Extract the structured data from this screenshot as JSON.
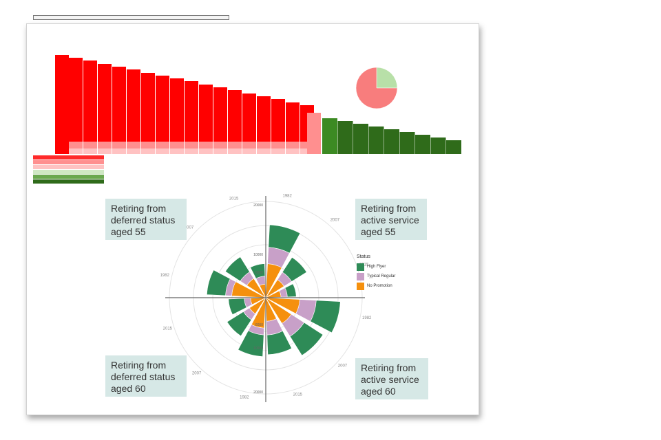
{
  "colors": {
    "red": "#ff0000",
    "red_light": "#ff8f8f",
    "red_pale": "#ffc2c2",
    "green_dark": "#2f6b1a",
    "green_mid": "#3c8a23",
    "pie_red": "#f87d7d",
    "pie_green": "#b8e0a8",
    "high_flyer": "#2e8b57",
    "typical_regular": "#c8a0c8",
    "no_promotion": "#f5900e"
  },
  "top_chart": {
    "type": "bar",
    "bars_red": 17,
    "bars_green": 9,
    "pie_values": [
      25,
      75
    ]
  },
  "chart_data": {
    "type": "pie",
    "subtype": "polar-area (nightingale rose)",
    "legend_title": "Status",
    "legend": [
      "High Flyer",
      "Typical Regular",
      "No Promotion"
    ],
    "legend_position": "right",
    "quadrants": [
      {
        "name": "Retiring from active service aged 55",
        "stacks": [
          [
            6000,
            3000,
            2500
          ],
          [
            3000,
            1000,
            1000
          ],
          [
            1000,
            500,
            500
          ]
        ]
      },
      {
        "name": "Retiring from active service aged 60",
        "stacks": [
          [
            6500,
            3000,
            2500
          ],
          [
            5500,
            2500,
            2000
          ],
          [
            4000,
            1800,
            1200
          ]
        ]
      },
      {
        "name": "Retiring from deferred status aged 60",
        "stacks": [
          [
            4500,
            1000,
            2000
          ],
          [
            3000,
            700,
            800
          ],
          [
            2000,
            500,
            500
          ]
        ]
      },
      {
        "name": "Retiring from deferred status aged 55",
        "stacks": [
          [
            4000,
            1000,
            2500
          ],
          [
            3000,
            900,
            1100
          ],
          [
            1500,
            600,
            400
          ]
        ]
      }
    ],
    "radial_labels_up": [
      "6000",
      "10000",
      "20000"
    ],
    "radial_labels_down": [
      "6000",
      "10000",
      "20000"
    ],
    "year_labels": [
      "1982",
      "2007",
      "2015",
      "1982",
      "2007",
      "2015",
      "1982",
      "2007",
      "2015",
      "1982",
      "2007",
      "2015"
    ]
  },
  "callouts": {
    "tl": "Retiring from deferred status aged 55",
    "tr": "Retiring from active service aged 55",
    "bl": "Retiring from deferred status aged 60",
    "br": "Retiring from active service aged 60"
  }
}
